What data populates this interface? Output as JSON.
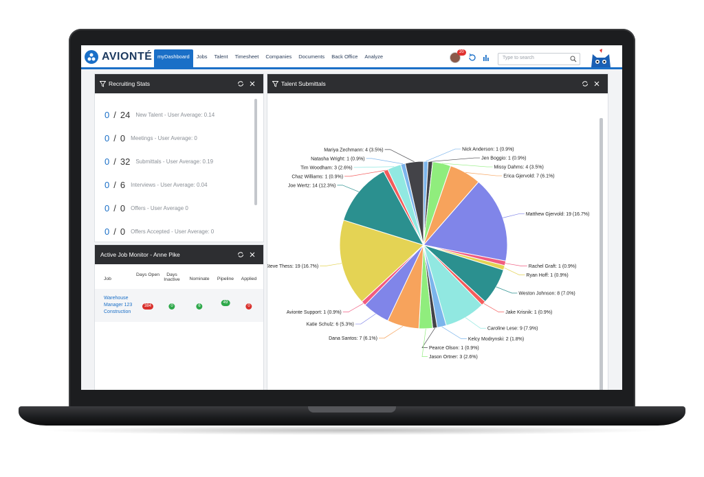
{
  "header": {
    "logo": "AVIONTÉ",
    "nav": [
      "myDashboard",
      "Jobs",
      "Talent",
      "Timesheet",
      "Companies",
      "Documents",
      "Back Office",
      "Analyze"
    ],
    "notification_count": 20,
    "search_placeholder": "Type to search"
  },
  "recruiting_stats": {
    "title": "Recruiting Stats",
    "separator": "/",
    "rows": [
      {
        "value": 0,
        "target": 24,
        "label": "New Talent - User Average: 0.14"
      },
      {
        "value": 0,
        "target": 0,
        "label": "Meetings - User Average: 0"
      },
      {
        "value": 0,
        "target": 32,
        "label": "Submittals - User Average: 0.19"
      },
      {
        "value": 0,
        "target": 6,
        "label": "Interviews - User Average: 0.04"
      },
      {
        "value": 0,
        "target": 0,
        "label": "Offers - User Average 0"
      },
      {
        "value": 0,
        "target": 0,
        "label": "Offers Accepted - User Average: 0"
      }
    ]
  },
  "job_monitor": {
    "title": "Active Job Monitor - Anne Pike",
    "columns": [
      "Job",
      "Days Open",
      "Days Inactive",
      "Nominate",
      "Pipeline",
      "Applied"
    ],
    "rows": [
      {
        "job": "Warehouse Manager 123 Construction",
        "days_open": 384,
        "days_inactive": 0,
        "nominate": 6,
        "pipeline": 49,
        "applied": 0
      }
    ]
  },
  "chart_data": {
    "type": "pie",
    "title": "Talent Submittals",
    "values": [
      1,
      1,
      4,
      7,
      19,
      1,
      1,
      8,
      1,
      9,
      2,
      1,
      3,
      7,
      6,
      1,
      19,
      14,
      1,
      3,
      1,
      4
    ],
    "value_labels": [
      "Nick Anderson: 1 (0.9%)",
      "Jen Boggio: 1 (0.9%)",
      "Missy Dahms: 4 (3.5%)",
      "Erica Gjervold: 7 (6.1%)",
      "Matthew Gjervold: 19 (16.7%)",
      "Rachel Graft: 1 (0.9%)",
      "Ryan Hoff: 1 (0.9%)",
      "Weston Johnson: 8 (7.0%)",
      "Jake Krisnik: 1 (0.9%)",
      "Caroline Lese: 9 (7.9%)",
      "Kelcy Modrynski: 2 (1.8%)",
      "Pearce Olson: 1 (0.9%)",
      "Jason Ortner: 3 (2.6%)",
      "Dana Santos: 7 (6.1%)",
      "Katie Schulz: 6 (5.3%)",
      "Avionte Support: 1 (0.9%)",
      "Steve Thess: 19 (16.7%)",
      "Joe Wertz: 14 (12.3%)",
      "Chaz Williams: 1 (0.9%)",
      "Tim Woodham: 3 (2.6%)",
      "Natasha Wright: 1 (0.9%)",
      "Mariya Zechmann: 4 (3.5%)"
    ],
    "colors": [
      "#7cb5ec",
      "#434348",
      "#90ed7d",
      "#f7a35c",
      "#8085e9",
      "#f15c80",
      "#e4d354",
      "#2b908f",
      "#f45b5b",
      "#91e8e1",
      "#7cb5ec",
      "#434348",
      "#90ed7d",
      "#f7a35c",
      "#8085e9",
      "#f15c80",
      "#e4d354",
      "#2b908f",
      "#f45b5b",
      "#91e8e1",
      "#7cb5ec",
      "#434348"
    ]
  }
}
